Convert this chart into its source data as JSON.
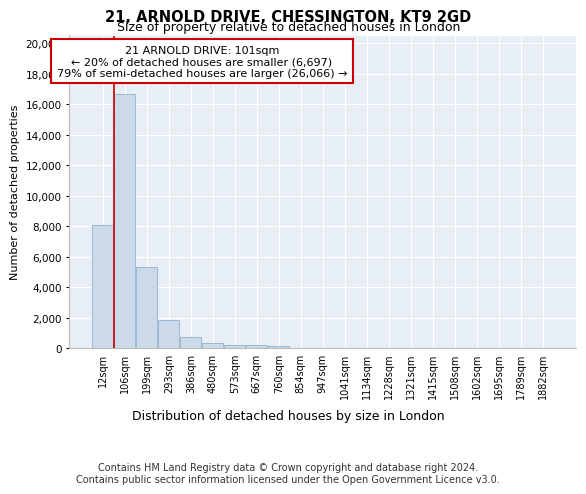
{
  "title_line1": "21, ARNOLD DRIVE, CHESSINGTON, KT9 2GD",
  "title_line2": "Size of property relative to detached houses in London",
  "xlabel": "Distribution of detached houses by size in London",
  "ylabel": "Number of detached properties",
  "categories": [
    "12sqm",
    "106sqm",
    "199sqm",
    "293sqm",
    "386sqm",
    "480sqm",
    "573sqm",
    "667sqm",
    "760sqm",
    "854sqm",
    "947sqm",
    "1041sqm",
    "1134sqm",
    "1228sqm",
    "1321sqm",
    "1415sqm",
    "1508sqm",
    "1602sqm",
    "1695sqm",
    "1789sqm",
    "1882sqm"
  ],
  "values": [
    8100,
    16650,
    5300,
    1820,
    750,
    300,
    210,
    175,
    155,
    0,
    0,
    0,
    0,
    0,
    0,
    0,
    0,
    0,
    0,
    0,
    0
  ],
  "bar_color": "#ccd9e8",
  "bar_edge_color": "#7fa8c8",
  "bar_edge_width": 0.5,
  "vline_x_index": 1.0,
  "vline_color": "#cc0000",
  "vline_linewidth": 1.2,
  "annotation_text_line1": "21 ARNOLD DRIVE: 101sqm",
  "annotation_text_line2": "← 20% of detached houses are smaller (6,697)",
  "annotation_text_line3": "79% of semi-detached houses are larger (26,066) →",
  "annotation_box_color": "#cc0000",
  "background_color": "#e8eef5",
  "grid_color": "#ffffff",
  "ylim": [
    0,
    20500
  ],
  "yticks": [
    0,
    2000,
    4000,
    6000,
    8000,
    10000,
    12000,
    14000,
    16000,
    18000,
    20000
  ],
  "footer_line1": "Contains HM Land Registry data © Crown copyright and database right 2024.",
  "footer_line2": "Contains public sector information licensed under the Open Government Licence v3.0."
}
